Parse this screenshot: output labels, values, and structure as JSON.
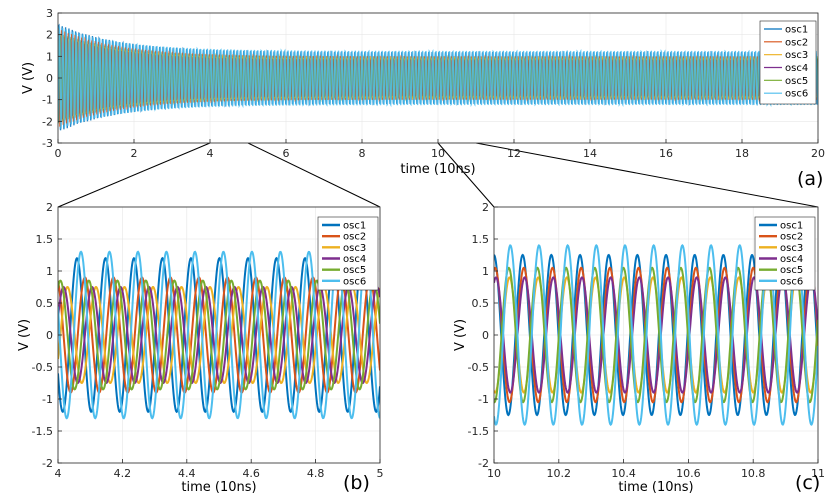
{
  "chart_data": [
    {
      "type": "line",
      "panel": "(a)",
      "xlabel": "time (10ns)",
      "ylabel": "V (V)",
      "xlim": [
        0,
        20
      ],
      "ylim": [
        -3,
        3
      ],
      "xticks": [
        0,
        2,
        4,
        6,
        8,
        10,
        12,
        14,
        16,
        18,
        20
      ],
      "yticks": [
        -3,
        -2,
        -1,
        0,
        1,
        2,
        3
      ],
      "grid": true,
      "legend_position": "top-right",
      "series": [
        {
          "name": "osc1",
          "color": "#0072BD",
          "steady_amplitude": 1.2,
          "initial_amplitude": 2.5
        },
        {
          "name": "osc2",
          "color": "#D95319",
          "steady_amplitude": 1.0,
          "initial_amplitude": 2.3
        },
        {
          "name": "osc3",
          "color": "#EDB120",
          "steady_amplitude": 0.9,
          "initial_amplitude": 2.0
        },
        {
          "name": "osc4",
          "color": "#7E2F8E",
          "steady_amplitude": 0.85,
          "initial_amplitude": 2.0
        },
        {
          "name": "osc5",
          "color": "#77AC30",
          "steady_amplitude": 1.0,
          "initial_amplitude": 2.1
        },
        {
          "name": "osc6",
          "color": "#4DBEEE",
          "steady_amplitude": 1.25,
          "initial_amplitude": 2.4
        }
      ],
      "zoom_windows": [
        [
          4,
          5
        ],
        [
          10,
          11
        ]
      ]
    },
    {
      "type": "line",
      "panel": "(b)",
      "xlabel": "time (10ns)",
      "ylabel": "V (V)",
      "xlim": [
        4,
        5
      ],
      "ylim": [
        -2,
        2
      ],
      "xticks": [
        4,
        4.2,
        4.4,
        4.6,
        4.8,
        5
      ],
      "yticks": [
        -2,
        -1.5,
        -1,
        -0.5,
        0,
        0.5,
        1,
        1.5,
        2
      ],
      "grid": true,
      "legend_position": "top-right",
      "cycles_per_unit": 11.3,
      "series": [
        {
          "name": "osc1",
          "color": "#0072BD",
          "amplitude": 1.2,
          "phase_deg": 210
        },
        {
          "name": "osc2",
          "color": "#D95319",
          "amplitude": 0.9,
          "phase_deg": 110
        },
        {
          "name": "osc3",
          "color": "#EDB120",
          "amplitude": 0.75,
          "phase_deg": 330
        },
        {
          "name": "osc4",
          "color": "#7E2F8E",
          "amplitude": 0.75,
          "phase_deg": 20
        },
        {
          "name": "osc5",
          "color": "#77AC30",
          "amplitude": 0.85,
          "phase_deg": 60
        },
        {
          "name": "osc6",
          "color": "#4DBEEE",
          "amplitude": 1.3,
          "phase_deg": 160
        }
      ]
    },
    {
      "type": "line",
      "panel": "(c)",
      "xlabel": "time (10ns)",
      "ylabel": "V (V)",
      "xlim": [
        10,
        11
      ],
      "ylim": [
        -2,
        2
      ],
      "xticks": [
        10,
        10.2,
        10.4,
        10.6,
        10.8,
        11
      ],
      "yticks": [
        -2,
        -1.5,
        -1,
        -0.5,
        0,
        0.5,
        1,
        1.5,
        2
      ],
      "grid": true,
      "legend_position": "top-right",
      "cycles_per_unit": 11.3,
      "series": [
        {
          "name": "osc1",
          "color": "#0072BD",
          "amplitude": 1.25,
          "phase_deg": 90
        },
        {
          "name": "osc2",
          "color": "#D95319",
          "amplitude": 1.05,
          "phase_deg": 75
        },
        {
          "name": "osc3",
          "color": "#EDB120",
          "amplitude": 0.9,
          "phase_deg": 255
        },
        {
          "name": "osc4",
          "color": "#7E2F8E",
          "amplitude": 0.9,
          "phase_deg": 65
        },
        {
          "name": "osc5",
          "color": "#77AC30",
          "amplitude": 1.05,
          "phase_deg": 265
        },
        {
          "name": "osc6",
          "color": "#4DBEEE",
          "amplitude": 1.4,
          "phase_deg": 245
        }
      ]
    }
  ]
}
